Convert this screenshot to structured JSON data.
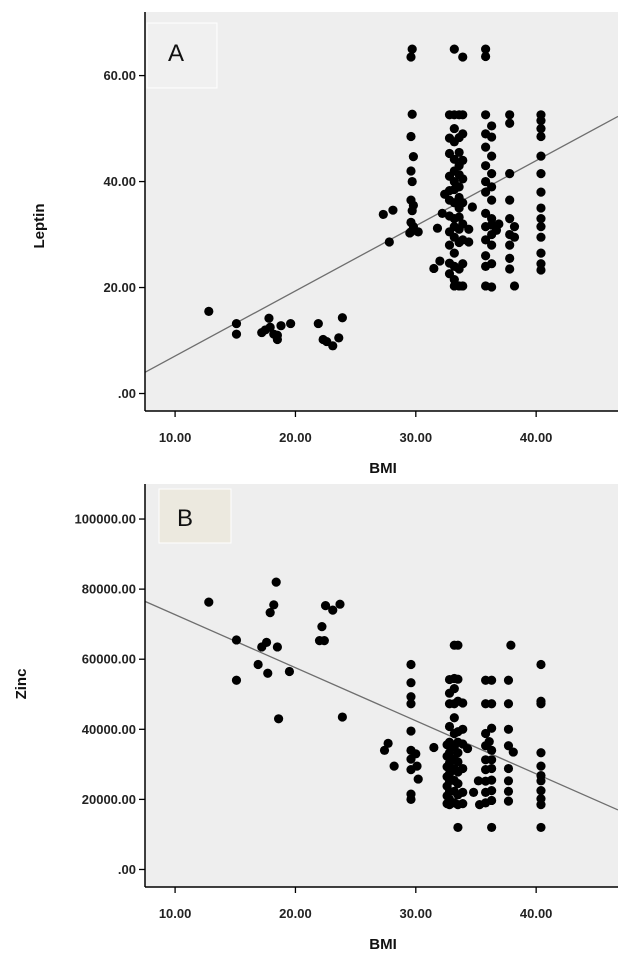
{
  "colors": {
    "plot_background": "#eeeeee",
    "point": "#000000",
    "fit_line": "#6e6e6e",
    "axis": "#000000",
    "panel_a_label_bg": "#f0f0f0",
    "panel_b_label_bg": "#ece9df"
  },
  "chart_data": [
    {
      "type": "scatter",
      "panel_label": "A",
      "xlabel": "BMI",
      "ylabel": "Leptin",
      "xlim": [
        7.5,
        46.8
      ],
      "ylim": [
        -3.3,
        72
      ],
      "x_ticks": [
        10,
        20,
        30,
        40
      ],
      "x_tick_labels": [
        "10.00",
        "20.00",
        "30.00",
        "40.00"
      ],
      "y_ticks": [
        0,
        20,
        40,
        60
      ],
      "y_tick_labels": [
        ".00",
        "20.00",
        "40.00",
        "60.00"
      ],
      "fit_line": {
        "x": [
          7.5,
          46.8
        ],
        "y": [
          4.0,
          52.3
        ]
      },
      "points": [
        [
          12.8,
          15.5
        ],
        [
          15.1,
          13.2
        ],
        [
          15.1,
          11.2
        ],
        [
          17.2,
          11.5
        ],
        [
          17.5,
          12.0
        ],
        [
          17.8,
          14.2
        ],
        [
          17.9,
          12.5
        ],
        [
          18.2,
          11.2
        ],
        [
          18.5,
          10.2
        ],
        [
          18.8,
          12.8
        ],
        [
          18.5,
          11.0
        ],
        [
          19.6,
          13.2
        ],
        [
          21.9,
          13.2
        ],
        [
          22.3,
          10.2
        ],
        [
          22.6,
          9.8
        ],
        [
          23.1,
          9.0
        ],
        [
          23.6,
          10.5
        ],
        [
          23.9,
          14.3
        ],
        [
          27.3,
          33.8
        ],
        [
          27.8,
          28.6
        ],
        [
          28.1,
          34.6
        ],
        [
          29.5,
          30.3
        ],
        [
          29.6,
          30.5
        ],
        [
          29.8,
          31.5
        ],
        [
          29.6,
          32.3
        ],
        [
          29.7,
          34.5
        ],
        [
          29.8,
          35.5
        ],
        [
          29.6,
          36.5
        ],
        [
          29.7,
          40.0
        ],
        [
          29.6,
          42.0
        ],
        [
          29.8,
          44.7
        ],
        [
          29.6,
          48.5
        ],
        [
          29.7,
          52.7
        ],
        [
          29.6,
          63.5
        ],
        [
          29.7,
          65.0
        ],
        [
          30.2,
          30.5
        ],
        [
          31.8,
          31.2
        ],
        [
          31.5,
          23.6
        ],
        [
          32.0,
          25.0
        ],
        [
          32.2,
          34.0
        ],
        [
          32.4,
          37.6
        ],
        [
          32.8,
          52.6
        ],
        [
          32.8,
          48.2
        ],
        [
          32.8,
          45.3
        ],
        [
          32.8,
          41.0
        ],
        [
          32.8,
          38.3
        ],
        [
          32.8,
          36.5
        ],
        [
          32.8,
          33.5
        ],
        [
          32.8,
          30.5
        ],
        [
          32.8,
          28.0
        ],
        [
          32.8,
          24.6
        ],
        [
          32.8,
          22.6
        ],
        [
          33.2,
          65.0
        ],
        [
          33.2,
          52.6
        ],
        [
          33.2,
          50.0
        ],
        [
          33.2,
          47.5
        ],
        [
          33.2,
          44.2
        ],
        [
          33.2,
          42.0
        ],
        [
          33.2,
          40.0
        ],
        [
          33.2,
          38.5
        ],
        [
          33.2,
          36.0
        ],
        [
          33.2,
          33.0
        ],
        [
          33.2,
          31.5
        ],
        [
          33.2,
          29.5
        ],
        [
          33.2,
          26.5
        ],
        [
          33.2,
          24.0
        ],
        [
          33.2,
          21.5
        ],
        [
          33.2,
          20.3
        ],
        [
          33.6,
          52.6
        ],
        [
          33.6,
          48.3
        ],
        [
          33.6,
          45.5
        ],
        [
          33.6,
          43.0
        ],
        [
          33.6,
          41.3
        ],
        [
          33.6,
          39.0
        ],
        [
          33.6,
          37.0
        ],
        [
          33.6,
          35.0
        ],
        [
          33.6,
          33.3
        ],
        [
          33.6,
          31.0
        ],
        [
          33.6,
          28.5
        ],
        [
          33.6,
          23.5
        ],
        [
          33.6,
          20.3
        ],
        [
          33.9,
          63.5
        ],
        [
          33.9,
          52.6
        ],
        [
          33.9,
          49.0
        ],
        [
          33.9,
          44.0
        ],
        [
          33.9,
          40.5
        ],
        [
          33.9,
          36.0
        ],
        [
          33.9,
          32.0
        ],
        [
          33.9,
          29.0
        ],
        [
          33.9,
          24.5
        ],
        [
          33.9,
          20.3
        ],
        [
          34.4,
          31.0
        ],
        [
          34.7,
          35.2
        ],
        [
          34.4,
          28.6
        ],
        [
          35.8,
          65.0
        ],
        [
          35.8,
          63.6
        ],
        [
          35.8,
          52.6
        ],
        [
          35.8,
          49.0
        ],
        [
          35.8,
          46.5
        ],
        [
          35.8,
          43.0
        ],
        [
          35.8,
          40.0
        ],
        [
          35.8,
          38.0
        ],
        [
          35.8,
          34.0
        ],
        [
          35.8,
          31.5
        ],
        [
          35.8,
          29.0
        ],
        [
          35.8,
          26.0
        ],
        [
          35.8,
          24.0
        ],
        [
          35.8,
          20.3
        ],
        [
          36.3,
          50.5
        ],
        [
          36.3,
          48.4
        ],
        [
          36.3,
          44.8
        ],
        [
          36.3,
          41.5
        ],
        [
          36.3,
          39.0
        ],
        [
          36.3,
          36.5
        ],
        [
          36.3,
          33.0
        ],
        [
          36.3,
          31.8
        ],
        [
          36.3,
          30.0
        ],
        [
          36.3,
          28.0
        ],
        [
          36.3,
          24.5
        ],
        [
          36.3,
          20.1
        ],
        [
          36.7,
          30.8
        ],
        [
          36.9,
          32.0
        ],
        [
          37.8,
          52.6
        ],
        [
          37.8,
          51.0
        ],
        [
          37.8,
          41.5
        ],
        [
          37.8,
          36.5
        ],
        [
          37.8,
          33.0
        ],
        [
          37.8,
          30.0
        ],
        [
          37.8,
          28.0
        ],
        [
          37.8,
          25.5
        ],
        [
          37.8,
          23.5
        ],
        [
          38.2,
          31.5
        ],
        [
          38.2,
          29.5
        ],
        [
          38.2,
          20.3
        ],
        [
          40.4,
          52.6
        ],
        [
          40.4,
          51.5
        ],
        [
          40.4,
          50.0
        ],
        [
          40.4,
          48.5
        ],
        [
          40.4,
          44.8
        ],
        [
          40.4,
          41.5
        ],
        [
          40.4,
          38.0
        ],
        [
          40.4,
          35.0
        ],
        [
          40.4,
          33.0
        ],
        [
          40.4,
          31.5
        ],
        [
          40.4,
          29.5
        ],
        [
          40.4,
          26.5
        ],
        [
          40.4,
          24.5
        ],
        [
          40.4,
          23.3
        ]
      ]
    },
    {
      "type": "scatter",
      "panel_label": "B",
      "xlabel": "BMI",
      "ylabel": "Zinc",
      "xlim": [
        7.5,
        46.8
      ],
      "ylim": [
        -5000,
        110000
      ],
      "x_ticks": [
        10,
        20,
        30,
        40
      ],
      "x_tick_labels": [
        "10.00",
        "20.00",
        "30.00",
        "40.00"
      ],
      "y_ticks": [
        0,
        20000,
        40000,
        60000,
        80000,
        100000
      ],
      "y_tick_labels": [
        ".00",
        "20000.00",
        "40000.00",
        "60000.00",
        "80000.00",
        "100000.00"
      ],
      "fit_line": {
        "x": [
          7.5,
          46.8
        ],
        "y": [
          76500,
          17000
        ]
      },
      "points": [
        [
          12.8,
          76300
        ],
        [
          15.1,
          65500
        ],
        [
          15.1,
          54000
        ],
        [
          16.9,
          58500
        ],
        [
          17.2,
          63500
        ],
        [
          17.6,
          64800
        ],
        [
          17.7,
          56000
        ],
        [
          17.9,
          73300
        ],
        [
          18.2,
          75500
        ],
        [
          18.4,
          82000
        ],
        [
          18.5,
          63500
        ],
        [
          18.6,
          43000
        ],
        [
          19.5,
          56500
        ],
        [
          22.0,
          65300
        ],
        [
          22.2,
          69300
        ],
        [
          22.4,
          65300
        ],
        [
          22.5,
          75300
        ],
        [
          23.1,
          74000
        ],
        [
          23.7,
          75700
        ],
        [
          23.9,
          43500
        ],
        [
          27.4,
          34000
        ],
        [
          27.7,
          36000
        ],
        [
          28.2,
          29500
        ],
        [
          29.6,
          58500
        ],
        [
          29.6,
          53300
        ],
        [
          29.6,
          49300
        ],
        [
          29.6,
          47300
        ],
        [
          29.6,
          39500
        ],
        [
          29.6,
          34000
        ],
        [
          29.6,
          31500
        ],
        [
          29.6,
          28500
        ],
        [
          29.6,
          21500
        ],
        [
          29.6,
          20000
        ],
        [
          30.0,
          33000
        ],
        [
          30.1,
          29500
        ],
        [
          30.2,
          25800
        ],
        [
          31.5,
          34800
        ],
        [
          32.6,
          35600
        ],
        [
          32.6,
          32300
        ],
        [
          32.6,
          29300
        ],
        [
          32.6,
          26500
        ],
        [
          32.6,
          23800
        ],
        [
          32.6,
          21000
        ],
        [
          32.6,
          18800
        ],
        [
          32.8,
          54200
        ],
        [
          32.8,
          50300
        ],
        [
          32.8,
          47300
        ],
        [
          32.8,
          40800
        ],
        [
          32.8,
          36300
        ],
        [
          32.8,
          33300
        ],
        [
          32.8,
          30300
        ],
        [
          32.8,
          27300
        ],
        [
          32.8,
          25300
        ],
        [
          32.8,
          22300
        ],
        [
          32.8,
          20000
        ],
        [
          32.8,
          18500
        ],
        [
          33.2,
          64000
        ],
        [
          33.2,
          54500
        ],
        [
          33.2,
          51600
        ],
        [
          33.2,
          47300
        ],
        [
          33.2,
          43300
        ],
        [
          33.2,
          38800
        ],
        [
          33.2,
          35000
        ],
        [
          33.2,
          31500
        ],
        [
          33.2,
          28700
        ],
        [
          33.2,
          25400
        ],
        [
          33.2,
          22300
        ],
        [
          33.2,
          19000
        ],
        [
          33.5,
          64000
        ],
        [
          33.5,
          54300
        ],
        [
          33.5,
          48000
        ],
        [
          33.5,
          39300
        ],
        [
          33.5,
          36300
        ],
        [
          33.5,
          33300
        ],
        [
          33.5,
          30700
        ],
        [
          33.5,
          27800
        ],
        [
          33.5,
          24500
        ],
        [
          33.5,
          21300
        ],
        [
          33.5,
          18500
        ],
        [
          33.5,
          12000
        ],
        [
          33.9,
          47500
        ],
        [
          33.9,
          40000
        ],
        [
          33.9,
          35800
        ],
        [
          33.9,
          28800
        ],
        [
          33.9,
          22000
        ],
        [
          33.9,
          18800
        ],
        [
          34.3,
          34500
        ],
        [
          34.8,
          22000
        ],
        [
          35.2,
          25300
        ],
        [
          35.3,
          18500
        ],
        [
          35.8,
          54000
        ],
        [
          35.8,
          47300
        ],
        [
          35.8,
          38800
        ],
        [
          35.8,
          35300
        ],
        [
          35.8,
          31300
        ],
        [
          35.8,
          28500
        ],
        [
          35.8,
          25200
        ],
        [
          35.8,
          22000
        ],
        [
          35.8,
          19000
        ],
        [
          36.1,
          36500
        ],
        [
          36.3,
          54000
        ],
        [
          36.3,
          47300
        ],
        [
          36.3,
          40300
        ],
        [
          36.3,
          34000
        ],
        [
          36.3,
          31300
        ],
        [
          36.3,
          28800
        ],
        [
          36.3,
          25500
        ],
        [
          36.3,
          22500
        ],
        [
          36.3,
          19700
        ],
        [
          36.3,
          12000
        ],
        [
          37.7,
          54000
        ],
        [
          37.7,
          47300
        ],
        [
          37.7,
          40000
        ],
        [
          37.7,
          35300
        ],
        [
          37.7,
          28800
        ],
        [
          37.7,
          25300
        ],
        [
          37.7,
          22300
        ],
        [
          37.7,
          19500
        ],
        [
          37.9,
          64000
        ],
        [
          38.1,
          33500
        ],
        [
          40.4,
          58500
        ],
        [
          40.4,
          48000
        ],
        [
          40.4,
          47300
        ],
        [
          40.4,
          33300
        ],
        [
          40.4,
          29500
        ],
        [
          40.4,
          26800
        ],
        [
          40.4,
          25300
        ],
        [
          40.4,
          22500
        ],
        [
          40.4,
          20200
        ],
        [
          40.4,
          18500
        ],
        [
          40.4,
          12000
        ]
      ]
    }
  ]
}
